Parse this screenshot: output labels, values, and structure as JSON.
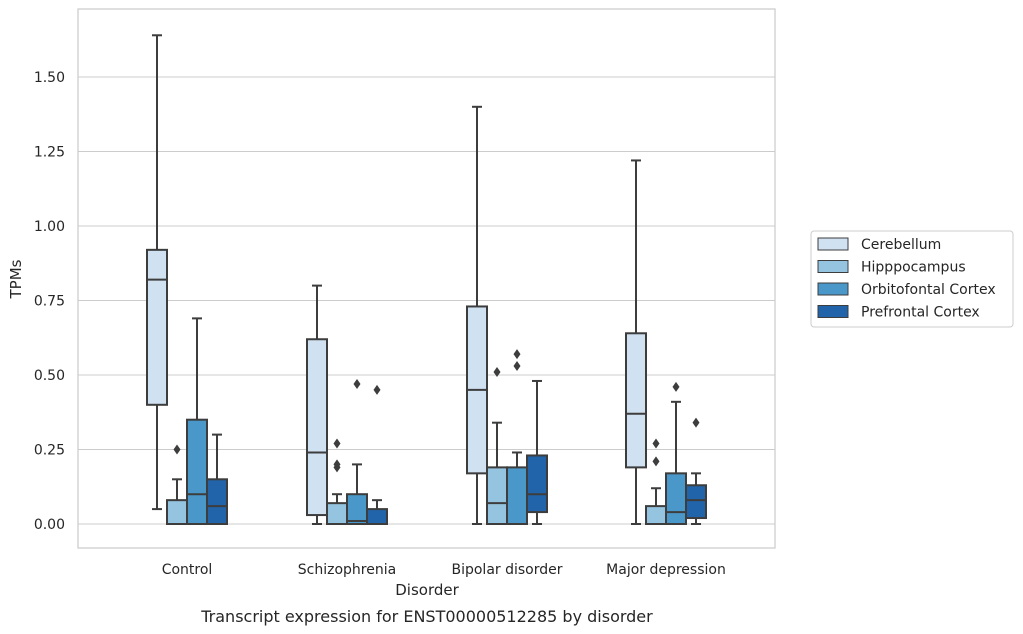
{
  "caption": "Transcript expression for ENST00000512285 by disorder",
  "chart_data": {
    "type": "box",
    "title": "",
    "xlabel": "Disorder",
    "ylabel": "TPMs",
    "ylim": [
      -0.08,
      1.72
    ],
    "yticks": [
      0.0,
      0.25,
      0.5,
      0.75,
      1.0,
      1.25,
      1.5
    ],
    "ytick_labels": [
      "0.00",
      "0.25",
      "0.50",
      "0.75",
      "1.00",
      "1.25",
      "1.50"
    ],
    "grid": "horizontal",
    "legend_position": "right",
    "categories": [
      "Control",
      "Schizophrenia",
      "Bipolar disorder",
      "Major depression"
    ],
    "series": [
      {
        "name": "Cerebellum",
        "color": "#d0e1f2",
        "boxes": [
          {
            "whislo": 0.05,
            "q1": 0.4,
            "med": 0.82,
            "q3": 0.92,
            "whishi": 1.64,
            "fliers": []
          },
          {
            "whislo": 0.0,
            "q1": 0.03,
            "med": 0.24,
            "q3": 0.62,
            "whishi": 0.8,
            "fliers": []
          },
          {
            "whislo": 0.0,
            "q1": 0.17,
            "med": 0.45,
            "q3": 0.73,
            "whishi": 1.4,
            "fliers": []
          },
          {
            "whislo": 0.0,
            "q1": 0.19,
            "med": 0.37,
            "q3": 0.64,
            "whishi": 1.22,
            "fliers": []
          }
        ]
      },
      {
        "name": "Hipppocampus",
        "color": "#94c4df",
        "boxes": [
          {
            "whislo": 0.0,
            "q1": 0.0,
            "med": 0.0,
            "q3": 0.08,
            "whishi": 0.15,
            "fliers": [
              0.25
            ]
          },
          {
            "whislo": 0.0,
            "q1": 0.0,
            "med": 0.0,
            "q3": 0.07,
            "whishi": 0.1,
            "fliers": [
              0.19,
              0.2,
              0.27
            ]
          },
          {
            "whislo": 0.0,
            "q1": 0.0,
            "med": 0.07,
            "q3": 0.19,
            "whishi": 0.34,
            "fliers": [
              0.51
            ]
          },
          {
            "whislo": 0.0,
            "q1": 0.0,
            "med": 0.0,
            "q3": 0.06,
            "whishi": 0.12,
            "fliers": [
              0.21,
              0.27
            ]
          }
        ]
      },
      {
        "name": "Orbitofontal Cortex",
        "color": "#4a98c9",
        "boxes": [
          {
            "whislo": 0.0,
            "q1": 0.0,
            "med": 0.1,
            "q3": 0.35,
            "whishi": 0.69,
            "fliers": []
          },
          {
            "whislo": 0.0,
            "q1": 0.0,
            "med": 0.01,
            "q3": 0.1,
            "whishi": 0.2,
            "fliers": [
              0.47
            ]
          },
          {
            "whislo": 0.0,
            "q1": 0.0,
            "med": 0.0,
            "q3": 0.19,
            "whishi": 0.24,
            "fliers": [
              0.53,
              0.57
            ]
          },
          {
            "whislo": 0.0,
            "q1": 0.0,
            "med": 0.04,
            "q3": 0.17,
            "whishi": 0.41,
            "fliers": [
              0.46
            ]
          }
        ]
      },
      {
        "name": "Prefrontal Cortex",
        "color": "#2264a9",
        "boxes": [
          {
            "whislo": 0.0,
            "q1": 0.0,
            "med": 0.06,
            "q3": 0.15,
            "whishi": 0.3,
            "fliers": []
          },
          {
            "whislo": 0.0,
            "q1": 0.0,
            "med": 0.0,
            "q3": 0.05,
            "whishi": 0.08,
            "fliers": [
              0.45
            ]
          },
          {
            "whislo": 0.0,
            "q1": 0.04,
            "med": 0.1,
            "q3": 0.23,
            "whishi": 0.48,
            "fliers": []
          },
          {
            "whislo": 0.0,
            "q1": 0.02,
            "med": 0.08,
            "q3": 0.13,
            "whishi": 0.17,
            "fliers": [
              0.34
            ]
          }
        ]
      }
    ]
  }
}
